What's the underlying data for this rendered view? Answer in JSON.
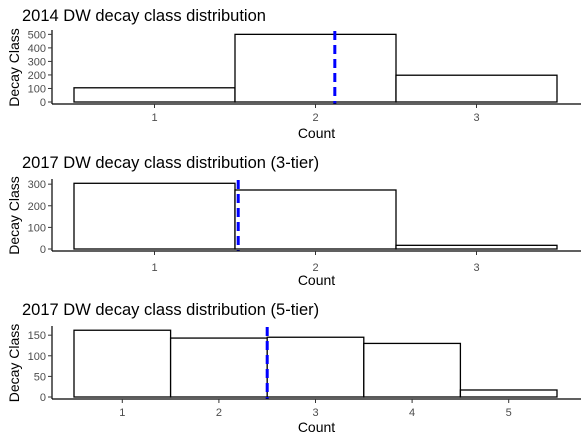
{
  "chart_data": [
    {
      "type": "bar",
      "title": "2014 DW decay class distribution",
      "xlabel": "Count",
      "ylabel": "Decay Class",
      "categories": [
        "1",
        "2",
        "3"
      ],
      "values": [
        105,
        500,
        198
      ],
      "yticks": [
        0,
        100,
        200,
        300,
        400,
        500
      ],
      "ylim": [
        0,
        510
      ],
      "mean_line_x": 2.12,
      "mean_line_color": "#0000ff"
    },
    {
      "type": "bar",
      "title": "2017 DW decay class distribution (3-tier)",
      "xlabel": "Count",
      "ylabel": "Decay Class",
      "categories": [
        "1",
        "2",
        "3"
      ],
      "values": [
        304,
        273,
        17
      ],
      "yticks": [
        0,
        100,
        200,
        300
      ],
      "ylim": [
        0,
        310
      ],
      "mean_line_x": 1.52,
      "mean_line_color": "#0000ff"
    },
    {
      "type": "bar",
      "title": "2017 DW decay class distribution (5-tier)",
      "xlabel": "Count",
      "ylabel": "Decay Class",
      "categories": [
        "1",
        "2",
        "3",
        "4",
        "5"
      ],
      "values": [
        162,
        143,
        145,
        130,
        17
      ],
      "yticks": [
        0,
        50,
        100,
        150
      ],
      "ylim": [
        0,
        165
      ],
      "mean_line_x": 2.5,
      "mean_line_color": "#0000ff"
    }
  ]
}
